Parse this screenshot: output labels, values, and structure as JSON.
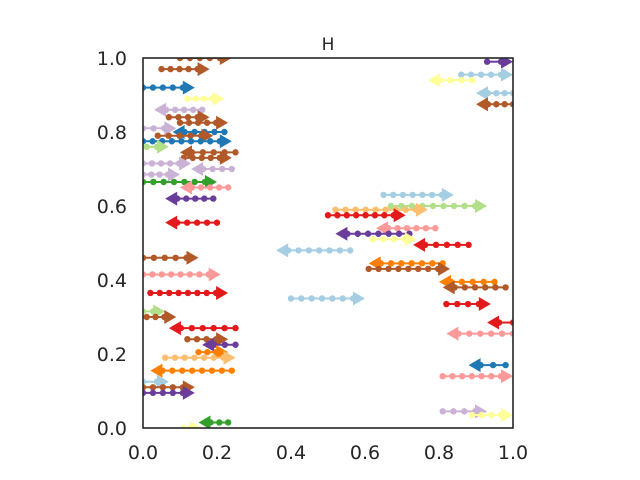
{
  "chart_data": {
    "type": "scatter",
    "title": "H",
    "xlabel": "",
    "ylabel": "",
    "xlim": [
      0,
      1
    ],
    "ylim": [
      0,
      1
    ],
    "grid": false,
    "x_ticks": [
      "0.0",
      "0.2",
      "0.4",
      "0.6",
      "0.8",
      "1.0"
    ],
    "y_ticks": [
      "0.0",
      "0.2",
      "0.4",
      "0.6",
      "0.8",
      "1.0"
    ],
    "palette": {
      "light-blue": "#a6cee3",
      "blue": "#1f78b4",
      "light-green": "#b2df8a",
      "green": "#33a02c",
      "pink": "#fb9a99",
      "red": "#e31a1c",
      "light-orange": "#fdbf6f",
      "orange": "#ff7f00",
      "lavender": "#cab2d6",
      "purple": "#6a3d9a",
      "yellow": "#ffff99",
      "brown": "#b15928"
    },
    "series": [
      {
        "color": "brown",
        "x0": 0.1,
        "x1": 0.24,
        "y": 1.0,
        "dir": "right"
      },
      {
        "color": "purple",
        "x0": 0.93,
        "x1": 1.0,
        "y": 0.99,
        "dir": "right"
      },
      {
        "color": "brown",
        "x0": 0.05,
        "x1": 0.18,
        "y": 0.97,
        "dir": "right"
      },
      {
        "color": "light-blue",
        "x0": 0.86,
        "x1": 1.0,
        "y": 0.955,
        "dir": "right"
      },
      {
        "color": "yellow",
        "x0": 0.77,
        "x1": 0.89,
        "y": 0.94,
        "dir": "left"
      },
      {
        "color": "blue",
        "x0": 0.0,
        "x1": 0.14,
        "y": 0.92,
        "dir": "right"
      },
      {
        "color": "light-blue",
        "x0": 0.9,
        "x1": 1.0,
        "y": 0.905,
        "dir": "left"
      },
      {
        "color": "yellow",
        "x0": 0.12,
        "x1": 0.22,
        "y": 0.89,
        "dir": "right"
      },
      {
        "color": "brown",
        "x0": 0.9,
        "x1": 1.0,
        "y": 0.875,
        "dir": "left"
      },
      {
        "color": "lavender",
        "x0": 0.03,
        "x1": 0.16,
        "y": 0.86,
        "dir": "left"
      },
      {
        "color": "brown",
        "x0": 0.07,
        "x1": 0.18,
        "y": 0.84,
        "dir": "right"
      },
      {
        "color": "brown",
        "x0": 0.1,
        "x1": 0.23,
        "y": 0.825,
        "dir": "right"
      },
      {
        "color": "lavender",
        "x0": 0.0,
        "x1": 0.09,
        "y": 0.81,
        "dir": "right"
      },
      {
        "color": "blue",
        "x0": 0.08,
        "x1": 0.22,
        "y": 0.8,
        "dir": "left"
      },
      {
        "color": "brown",
        "x0": 0.04,
        "x1": 0.19,
        "y": 0.79,
        "dir": "right"
      },
      {
        "color": "blue",
        "x0": 0.0,
        "x1": 0.24,
        "y": 0.775,
        "dir": "right"
      },
      {
        "color": "light-green",
        "x0": 0.01,
        "x1": 0.07,
        "y": 0.76,
        "dir": "right"
      },
      {
        "color": "brown",
        "x0": 0.1,
        "x1": 0.25,
        "y": 0.745,
        "dir": "left"
      },
      {
        "color": "brown",
        "x0": 0.11,
        "x1": 0.24,
        "y": 0.73,
        "dir": "right"
      },
      {
        "color": "lavender",
        "x0": 0.0,
        "x1": 0.13,
        "y": 0.715,
        "dir": "right"
      },
      {
        "color": "lavender",
        "x0": 0.13,
        "x1": 0.24,
        "y": 0.7,
        "dir": "left"
      },
      {
        "color": "lavender",
        "x0": 0.0,
        "x1": 0.1,
        "y": 0.685,
        "dir": "right"
      },
      {
        "color": "green",
        "x0": 0.0,
        "x1": 0.2,
        "y": 0.665,
        "dir": "right"
      },
      {
        "color": "pink",
        "x0": 0.1,
        "x1": 0.23,
        "y": 0.65,
        "dir": "left"
      },
      {
        "color": "purple",
        "x0": 0.06,
        "x1": 0.19,
        "y": 0.62,
        "dir": "left"
      },
      {
        "color": "light-blue",
        "x0": 0.65,
        "x1": 0.84,
        "y": 0.63,
        "dir": "right"
      },
      {
        "color": "light-green",
        "x0": 0.67,
        "x1": 0.93,
        "y": 0.6,
        "dir": "right"
      },
      {
        "color": "light-orange",
        "x0": 0.52,
        "x1": 0.77,
        "y": 0.59,
        "dir": "right"
      },
      {
        "color": "red",
        "x0": 0.5,
        "x1": 0.71,
        "y": 0.575,
        "dir": "right"
      },
      {
        "color": "red",
        "x0": 0.06,
        "x1": 0.2,
        "y": 0.555,
        "dir": "left"
      },
      {
        "color": "pink",
        "x0": 0.63,
        "x1": 0.79,
        "y": 0.54,
        "dir": "left"
      },
      {
        "color": "purple",
        "x0": 0.52,
        "x1": 0.72,
        "y": 0.525,
        "dir": "left"
      },
      {
        "color": "yellow",
        "x0": 0.62,
        "x1": 0.74,
        "y": 0.51,
        "dir": "right"
      },
      {
        "color": "red",
        "x0": 0.73,
        "x1": 0.88,
        "y": 0.495,
        "dir": "left"
      },
      {
        "color": "light-blue",
        "x0": 0.36,
        "x1": 0.56,
        "y": 0.48,
        "dir": "left"
      },
      {
        "color": "brown",
        "x0": 0.0,
        "x1": 0.15,
        "y": 0.46,
        "dir": "right"
      },
      {
        "color": "orange",
        "x0": 0.61,
        "x1": 0.81,
        "y": 0.445,
        "dir": "left"
      },
      {
        "color": "brown",
        "x0": 0.61,
        "x1": 0.83,
        "y": 0.43,
        "dir": "right"
      },
      {
        "color": "pink",
        "x0": 0.0,
        "x1": 0.21,
        "y": 0.415,
        "dir": "right"
      },
      {
        "color": "orange",
        "x0": 0.8,
        "x1": 0.95,
        "y": 0.395,
        "dir": "left"
      },
      {
        "color": "brown",
        "x0": 0.81,
        "x1": 0.98,
        "y": 0.38,
        "dir": "left"
      },
      {
        "color": "red",
        "x0": 0.02,
        "x1": 0.23,
        "y": 0.365,
        "dir": "right"
      },
      {
        "color": "light-blue",
        "x0": 0.4,
        "x1": 0.6,
        "y": 0.35,
        "dir": "right"
      },
      {
        "color": "red",
        "x0": 0.82,
        "x1": 0.94,
        "y": 0.335,
        "dir": "right"
      },
      {
        "color": "light-green",
        "x0": 0.0,
        "x1": 0.06,
        "y": 0.315,
        "dir": "right"
      },
      {
        "color": "brown",
        "x0": 0.01,
        "x1": 0.09,
        "y": 0.3,
        "dir": "right"
      },
      {
        "color": "red",
        "x0": 0.93,
        "x1": 1.0,
        "y": 0.285,
        "dir": "left"
      },
      {
        "color": "red",
        "x0": 0.07,
        "x1": 0.25,
        "y": 0.27,
        "dir": "left"
      },
      {
        "color": "pink",
        "x0": 0.82,
        "x1": 1.0,
        "y": 0.255,
        "dir": "left"
      },
      {
        "color": "brown",
        "x0": 0.12,
        "x1": 0.23,
        "y": 0.24,
        "dir": "right"
      },
      {
        "color": "purple",
        "x0": 0.16,
        "x1": 0.25,
        "y": 0.225,
        "dir": "left"
      },
      {
        "color": "orange",
        "x0": 0.15,
        "x1": 0.23,
        "y": 0.205,
        "dir": "right"
      },
      {
        "color": "light-orange",
        "x0": 0.06,
        "x1": 0.25,
        "y": 0.19,
        "dir": "right"
      },
      {
        "color": "blue",
        "x0": 0.88,
        "x1": 0.98,
        "y": 0.17,
        "dir": "left"
      },
      {
        "color": "orange",
        "x0": 0.02,
        "x1": 0.24,
        "y": 0.155,
        "dir": "left"
      },
      {
        "color": "pink",
        "x0": 0.81,
        "x1": 1.0,
        "y": 0.14,
        "dir": "right"
      },
      {
        "color": "light-blue",
        "x0": 0.0,
        "x1": 0.07,
        "y": 0.125,
        "dir": "right"
      },
      {
        "color": "brown",
        "x0": 0.0,
        "x1": 0.14,
        "y": 0.11,
        "dir": "right"
      },
      {
        "color": "purple",
        "x0": 0.0,
        "x1": 0.14,
        "y": 0.095,
        "dir": "right"
      },
      {
        "color": "lavender",
        "x0": 0.81,
        "x1": 0.93,
        "y": 0.045,
        "dir": "right"
      },
      {
        "color": "yellow",
        "x0": 0.89,
        "x1": 1.0,
        "y": 0.035,
        "dir": "right"
      },
      {
        "color": "green",
        "x0": 0.15,
        "x1": 0.23,
        "y": 0.015,
        "dir": "left"
      },
      {
        "color": "yellow",
        "x0": 0.11,
        "x1": 0.16,
        "y": 0.0,
        "dir": "right"
      }
    ]
  }
}
